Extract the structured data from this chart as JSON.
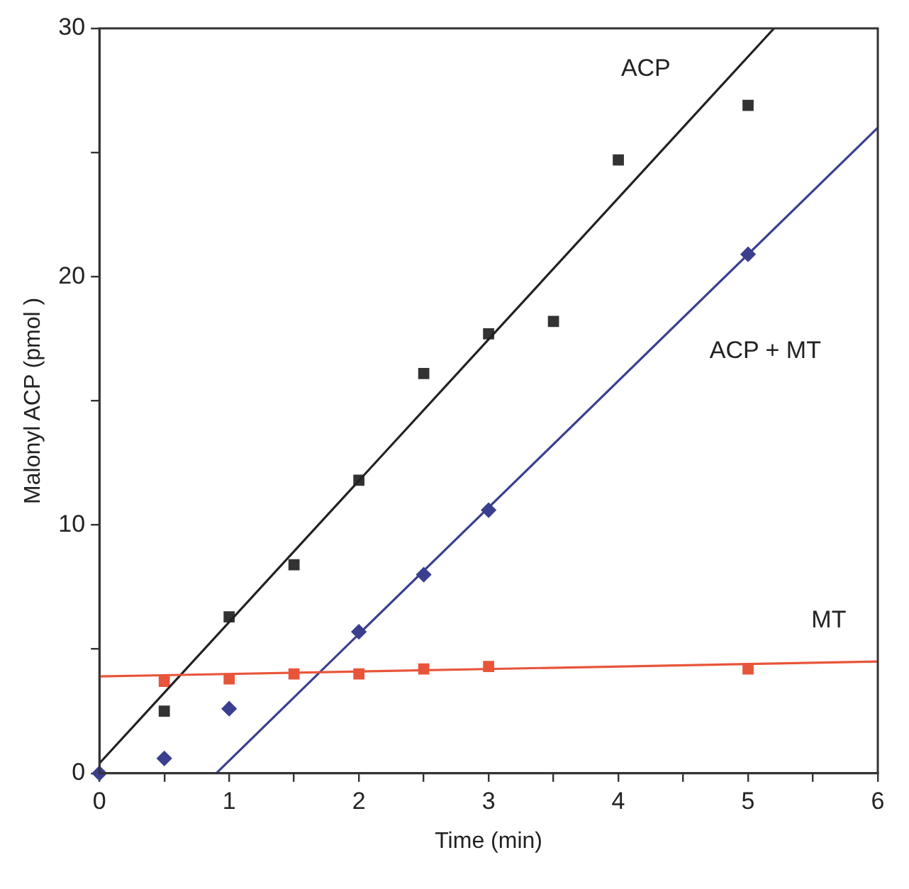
{
  "chart_data": {
    "type": "scatter",
    "xlabel": "Time (min)",
    "ylabel": "Malonyl ACP (pmol )",
    "xlim": [
      0,
      6
    ],
    "xticks": [
      0,
      {
        "value": 0.5,
        "label": null
      },
      1,
      {
        "value": 1.5,
        "label": null
      },
      2,
      {
        "value": 2.5,
        "label": null
      },
      3,
      {
        "value": 3.5,
        "label": null
      },
      4,
      {
        "value": 4.5,
        "label": null
      },
      5,
      {
        "value": 5.5,
        "label": null
      },
      6
    ],
    "ylim": [
      0,
      30
    ],
    "yticks": [
      0,
      {
        "value": 5,
        "label": null
      },
      10,
      {
        "value": 15,
        "label": null
      },
      20,
      {
        "value": 25,
        "label": null
      },
      30
    ],
    "grid": false,
    "legend": false,
    "series": [
      {
        "type": "scatter",
        "marker": "square",
        "color": "#333333",
        "x": [
          0.5,
          1,
          1.5,
          2,
          2.5,
          3,
          3.5,
          4,
          5
        ],
        "values": [
          2.5,
          6.3,
          8.4,
          11.8,
          16.1,
          17.7,
          18.2,
          24.7,
          26.9
        ]
      },
      {
        "type": "scatter",
        "marker": "diamond",
        "color": "#3a3f8f",
        "x": [
          0,
          0.5,
          1,
          2,
          2.5,
          3,
          5
        ],
        "values": [
          0,
          0.6,
          2.6,
          5.7,
          8.0,
          10.6,
          20.9
        ]
      },
      {
        "type": "scatter",
        "marker": "square",
        "color": "#e8553a",
        "x": [
          0.5,
          1,
          1.5,
          2,
          2.5,
          3,
          5
        ],
        "values": [
          3.7,
          3.8,
          4.0,
          4.0,
          4.2,
          4.3,
          4.2
        ]
      },
      {
        "type": "line",
        "marker": "none",
        "name": "ACP",
        "color": "#222222",
        "x": [
          0,
          5.2
        ],
        "values": [
          0.4,
          30
        ]
      },
      {
        "type": "line",
        "marker": "none",
        "name": "ACP + MT",
        "color": "#3a3f8f",
        "x": [
          0.9,
          6
        ],
        "values": [
          0,
          26
        ]
      },
      {
        "type": "line",
        "marker": "none",
        "name": "MT",
        "color": "#e8553a",
        "x": [
          0,
          6
        ],
        "values": [
          3.9,
          4.5
        ]
      }
    ]
  }
}
